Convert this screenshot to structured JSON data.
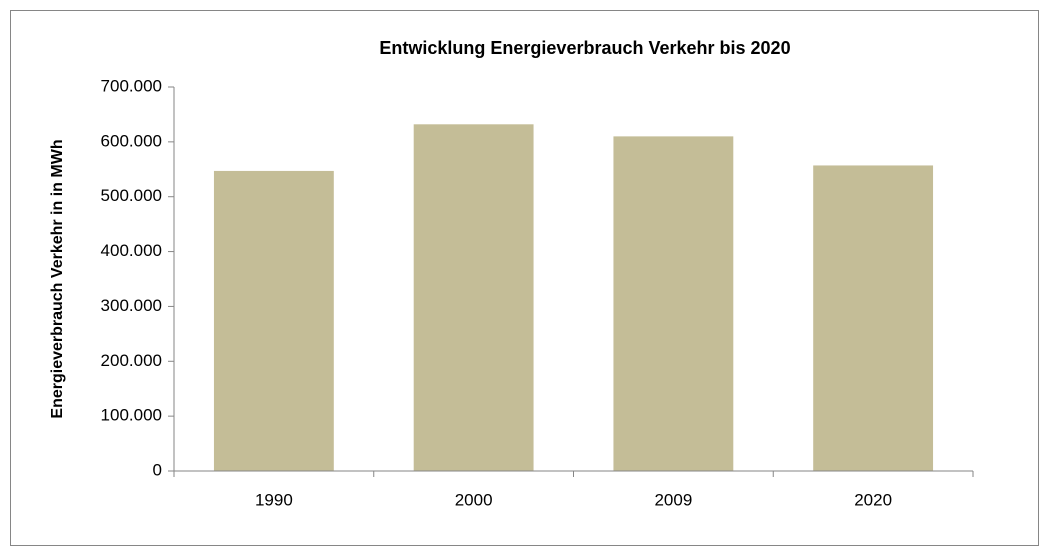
{
  "chart_data": {
    "type": "bar",
    "title": "Entwicklung Energieverbrauch  Verkehr bis 2020",
    "y_label": "Energieverbrauch  Verkehr in in MWh",
    "categories": [
      "1990",
      "2000",
      "2009",
      "2020"
    ],
    "values": [
      547000,
      632000,
      610000,
      557000
    ],
    "color": "#c4bd97",
    "ylim": [
      0,
      700000
    ],
    "yticks": [
      0,
      {
        "value": 100000,
        "label": "100.000"
      },
      {
        "value": 200000,
        "label": "200.000"
      },
      {
        "value": 300000,
        "label": "300.000"
      },
      {
        "value": 400000,
        "label": "400.000"
      },
      {
        "value": 500000,
        "label": "500.000"
      },
      {
        "value": 600000,
        "label": "600.000"
      },
      {
        "value": 700000,
        "label": "700.000"
      }
    ],
    "grid": false
  }
}
